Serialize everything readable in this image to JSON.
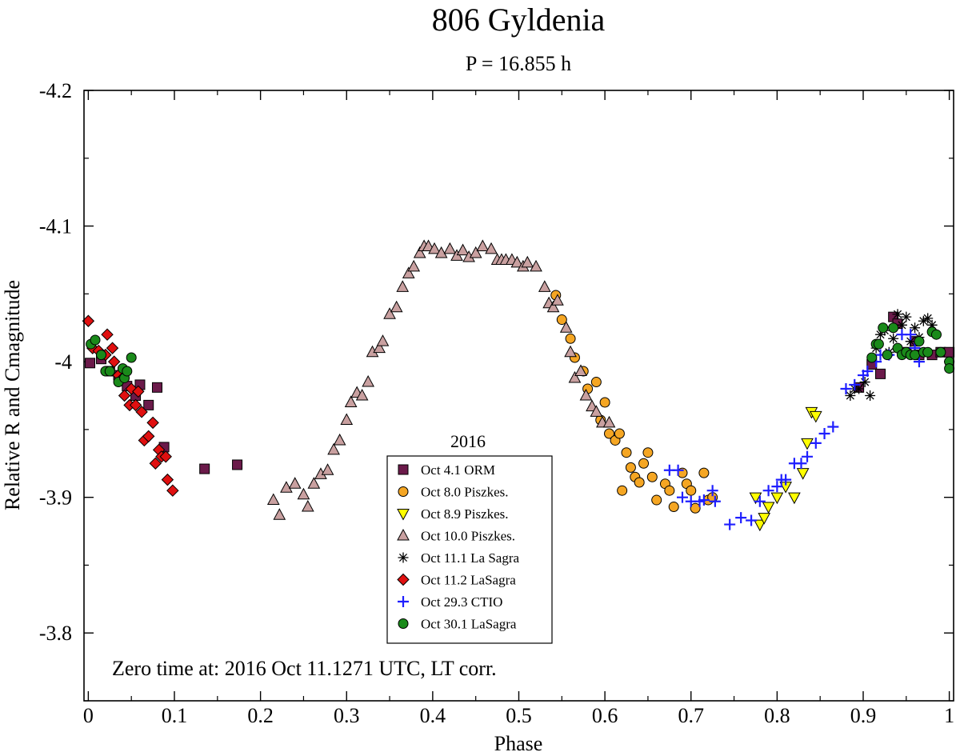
{
  "chart_data": {
    "type": "scatter",
    "title": "806 Gyldenia",
    "subtitle": "P = 16.855 h",
    "xlabel": "Phase",
    "ylabel": "Relative R  and Cmagnitude",
    "xlim": [
      -0.005,
      1.005
    ],
    "ylim": [
      -3.75,
      -4.2
    ],
    "y_inverted": true,
    "x_ticks": [
      0,
      0.1,
      0.2,
      0.3,
      0.4,
      0.5,
      0.6,
      0.7,
      0.8,
      0.9,
      1
    ],
    "x_tick_labels": [
      "0",
      "0.1",
      "0.2",
      "0.3",
      "0.4",
      "0.5",
      "0.6",
      "0.7",
      "0.8",
      "0.9",
      "1"
    ],
    "y_ticks": [
      -4.2,
      -4.1,
      -4.0,
      -3.9,
      -3.8
    ],
    "y_tick_labels": [
      "-4.2",
      "-4.1",
      "-4",
      "-3.9",
      "-3.8"
    ],
    "grid": false,
    "legend_title": "2016",
    "legend_position": "bottom-center",
    "annotation": "Zero time at: 2016 Oct 11.1271 UTC, LT corr.",
    "series": [
      {
        "name": "Oct 4.1 ORM",
        "marker": "square",
        "color": "#6b1a4a",
        "points": [
          [
            0.002,
            -3.999
          ],
          [
            0.015,
            -4.002
          ],
          [
            0.025,
            -3.993
          ],
          [
            0.035,
            -3.99
          ],
          [
            0.045,
            -3.982
          ],
          [
            0.055,
            -3.975
          ],
          [
            0.06,
            -3.983
          ],
          [
            0.07,
            -3.968
          ],
          [
            0.08,
            -3.981
          ],
          [
            0.088,
            -3.937
          ],
          [
            0.135,
            -3.921
          ],
          [
            0.173,
            -3.924
          ],
          [
            0.895,
            -3.981
          ],
          [
            0.91,
            -3.998
          ],
          [
            0.92,
            -3.991
          ],
          [
            0.935,
            -4.033
          ],
          [
            0.94,
            -4.028
          ],
          [
            0.95,
            -4.007
          ],
          [
            0.96,
            -4.015
          ],
          [
            0.965,
            -4.005
          ],
          [
            0.98,
            -4.005
          ],
          [
            0.99,
            -4.007
          ],
          [
            1.0,
            -4.007
          ]
        ]
      },
      {
        "name": "Oct 8.0 Piszkes.",
        "marker": "circle",
        "color": "#f5a623",
        "points": [
          [
            0.543,
            -4.049
          ],
          [
            0.55,
            -4.031
          ],
          [
            0.56,
            -4.017
          ],
          [
            0.565,
            -4.003
          ],
          [
            0.575,
            -3.993
          ],
          [
            0.58,
            -3.98
          ],
          [
            0.59,
            -3.985
          ],
          [
            0.595,
            -3.957
          ],
          [
            0.6,
            -3.97
          ],
          [
            0.605,
            -3.947
          ],
          [
            0.612,
            -3.942
          ],
          [
            0.617,
            -3.947
          ],
          [
            0.62,
            -3.905
          ],
          [
            0.625,
            -3.933
          ],
          [
            0.63,
            -3.922
          ],
          [
            0.635,
            -3.915
          ],
          [
            0.64,
            -3.911
          ],
          [
            0.645,
            -3.925
          ],
          [
            0.65,
            -3.933
          ],
          [
            0.655,
            -3.915
          ],
          [
            0.66,
            -3.898
          ],
          [
            0.67,
            -3.91
          ],
          [
            0.675,
            -3.905
          ],
          [
            0.68,
            -3.893
          ],
          [
            0.69,
            -3.918
          ],
          [
            0.695,
            -3.91
          ],
          [
            0.7,
            -3.905
          ],
          [
            0.705,
            -3.892
          ],
          [
            0.715,
            -3.918
          ],
          [
            0.72,
            -3.898
          ],
          [
            0.725,
            -3.9
          ]
        ]
      },
      {
        "name": "Oct 8.9 Piszkes.",
        "marker": "triangle-down",
        "color": "#ffff00",
        "points": [
          [
            0.775,
            -3.9
          ],
          [
            0.78,
            -3.88
          ],
          [
            0.785,
            -3.885
          ],
          [
            0.79,
            -3.893
          ],
          [
            0.8,
            -3.9
          ],
          [
            0.81,
            -3.908
          ],
          [
            0.82,
            -3.9
          ],
          [
            0.83,
            -3.918
          ],
          [
            0.835,
            -3.94
          ],
          [
            0.84,
            -3.963
          ],
          [
            0.845,
            -3.96
          ]
        ]
      },
      {
        "name": "Oct 10.0 Piszkes.",
        "marker": "triangle-up",
        "color": "#c9a0a0",
        "points": [
          [
            0.215,
            -3.898
          ],
          [
            0.222,
            -3.887
          ],
          [
            0.23,
            -3.907
          ],
          [
            0.24,
            -3.91
          ],
          [
            0.25,
            -3.902
          ],
          [
            0.255,
            -3.893
          ],
          [
            0.262,
            -3.91
          ],
          [
            0.27,
            -3.917
          ],
          [
            0.278,
            -3.92
          ],
          [
            0.285,
            -3.935
          ],
          [
            0.292,
            -3.942
          ],
          [
            0.3,
            -3.957
          ],
          [
            0.305,
            -3.97
          ],
          [
            0.312,
            -3.977
          ],
          [
            0.318,
            -3.975
          ],
          [
            0.325,
            -3.985
          ],
          [
            0.33,
            -4.007
          ],
          [
            0.338,
            -4.01
          ],
          [
            0.342,
            -4.015
          ],
          [
            0.35,
            -4.035
          ],
          [
            0.358,
            -4.04
          ],
          [
            0.365,
            -4.055
          ],
          [
            0.372,
            -4.065
          ],
          [
            0.378,
            -4.07
          ],
          [
            0.385,
            -4.08
          ],
          [
            0.39,
            -4.085
          ],
          [
            0.395,
            -4.085
          ],
          [
            0.402,
            -4.083
          ],
          [
            0.41,
            -4.08
          ],
          [
            0.42,
            -4.083
          ],
          [
            0.428,
            -4.078
          ],
          [
            0.435,
            -4.082
          ],
          [
            0.442,
            -4.077
          ],
          [
            0.45,
            -4.08
          ],
          [
            0.458,
            -4.085
          ],
          [
            0.468,
            -4.083
          ],
          [
            0.475,
            -4.075
          ],
          [
            0.48,
            -4.075
          ],
          [
            0.485,
            -4.075
          ],
          [
            0.492,
            -4.075
          ],
          [
            0.498,
            -4.073
          ],
          [
            0.505,
            -4.07
          ],
          [
            0.51,
            -4.073
          ],
          [
            0.52,
            -4.07
          ],
          [
            0.53,
            -4.055
          ],
          [
            0.535,
            -4.043
          ],
          [
            0.54,
            -4.04
          ],
          [
            0.545,
            -4.045
          ],
          [
            0.555,
            -4.025
          ],
          [
            0.56,
            -4.007
          ],
          [
            0.565,
            -3.988
          ],
          [
            0.572,
            -3.993
          ],
          [
            0.578,
            -3.975
          ],
          [
            0.585,
            -3.967
          ],
          [
            0.59,
            -3.963
          ],
          [
            0.597,
            -3.955
          ],
          [
            0.605,
            -3.955
          ]
        ]
      },
      {
        "name": "Oct 11.1 La Sagra",
        "marker": "asterisk",
        "color": "#000000",
        "points": [
          [
            0.885,
            -3.975
          ],
          [
            0.89,
            -3.98
          ],
          [
            0.895,
            -3.98
          ],
          [
            0.902,
            -3.985
          ],
          [
            0.908,
            -3.975
          ],
          [
            0.915,
            -4.01
          ],
          [
            0.92,
            -4.02
          ],
          [
            0.925,
            -4.023
          ],
          [
            0.93,
            -4.007
          ],
          [
            0.935,
            -4.017
          ],
          [
            0.94,
            -4.035
          ],
          [
            0.945,
            -4.027
          ],
          [
            0.95,
            -4.033
          ],
          [
            0.955,
            -4.015
          ],
          [
            0.96,
            -4.025
          ],
          [
            0.965,
            -4.018
          ],
          [
            0.97,
            -4.03
          ],
          [
            0.975,
            -4.032
          ],
          [
            0.98,
            -4.027
          ]
        ]
      },
      {
        "name": "Oct 11.2 LaSagra",
        "marker": "diamond",
        "color": "#e01010",
        "points": [
          [
            0.0,
            -4.03
          ],
          [
            0.005,
            -4.01
          ],
          [
            0.012,
            -4.008
          ],
          [
            0.02,
            -4.005
          ],
          [
            0.022,
            -4.02
          ],
          [
            0.028,
            -4.01
          ],
          [
            0.03,
            -4.0
          ],
          [
            0.035,
            -3.99
          ],
          [
            0.04,
            -3.988
          ],
          [
            0.042,
            -3.975
          ],
          [
            0.048,
            -3.968
          ],
          [
            0.05,
            -3.98
          ],
          [
            0.055,
            -3.968
          ],
          [
            0.058,
            -3.978
          ],
          [
            0.062,
            -3.963
          ],
          [
            0.065,
            -3.942
          ],
          [
            0.07,
            -3.945
          ],
          [
            0.075,
            -3.955
          ],
          [
            0.078,
            -3.925
          ],
          [
            0.082,
            -3.935
          ],
          [
            0.085,
            -3.93
          ],
          [
            0.09,
            -3.93
          ],
          [
            0.092,
            -3.913
          ],
          [
            0.098,
            -3.905
          ]
        ]
      },
      {
        "name": "Oct 29.3 CTIO",
        "marker": "plus",
        "color": "#1f1fff",
        "points": [
          [
            0.675,
            -3.92
          ],
          [
            0.685,
            -3.92
          ],
          [
            0.69,
            -3.9
          ],
          [
            0.7,
            -3.897
          ],
          [
            0.71,
            -3.897
          ],
          [
            0.715,
            -3.898
          ],
          [
            0.725,
            -3.905
          ],
          [
            0.728,
            -3.897
          ],
          [
            0.745,
            -3.88
          ],
          [
            0.758,
            -3.885
          ],
          [
            0.77,
            -3.883
          ],
          [
            0.78,
            -3.897
          ],
          [
            0.79,
            -3.905
          ],
          [
            0.8,
            -3.908
          ],
          [
            0.805,
            -3.913
          ],
          [
            0.81,
            -3.913
          ],
          [
            0.82,
            -3.925
          ],
          [
            0.828,
            -3.925
          ],
          [
            0.835,
            -3.93
          ],
          [
            0.845,
            -3.94
          ],
          [
            0.855,
            -3.947
          ],
          [
            0.865,
            -3.952
          ],
          [
            0.88,
            -3.98
          ],
          [
            0.89,
            -3.983
          ],
          [
            0.9,
            -3.99
          ],
          [
            0.905,
            -3.993
          ],
          [
            0.915,
            -4.0
          ],
          [
            0.92,
            -4.005
          ],
          [
            0.93,
            -4.005
          ],
          [
            0.945,
            -4.02
          ],
          [
            0.955,
            -4.02
          ],
          [
            0.96,
            -4.01
          ],
          [
            0.965,
            -4.0
          ]
        ]
      },
      {
        "name": "Oct 30.1 LaSagra",
        "marker": "circle",
        "color": "#1a8a1a",
        "points": [
          [
            0.003,
            -4.013
          ],
          [
            0.008,
            -4.016
          ],
          [
            0.015,
            -4.005
          ],
          [
            0.02,
            -3.993
          ],
          [
            0.025,
            -3.993
          ],
          [
            0.035,
            -3.985
          ],
          [
            0.04,
            -3.995
          ],
          [
            0.042,
            -3.988
          ],
          [
            0.045,
            -3.993
          ],
          [
            0.05,
            -4.003
          ],
          [
            0.91,
            -4.003
          ],
          [
            0.915,
            -4.013
          ],
          [
            0.918,
            -4.013
          ],
          [
            0.923,
            -4.025
          ],
          [
            0.928,
            -4.005
          ],
          [
            0.935,
            -4.025
          ],
          [
            0.94,
            -4.01
          ],
          [
            0.945,
            -4.005
          ],
          [
            0.95,
            -4.007
          ],
          [
            0.955,
            -4.005
          ],
          [
            0.96,
            -4.005
          ],
          [
            0.965,
            -4.015
          ],
          [
            0.97,
            -4.007
          ],
          [
            0.975,
            -4.007
          ],
          [
            0.98,
            -4.022
          ],
          [
            0.985,
            -4.02
          ],
          [
            0.99,
            -4.007
          ],
          [
            1.0,
            -4.0
          ],
          [
            1.0,
            -3.995
          ]
        ]
      }
    ]
  }
}
